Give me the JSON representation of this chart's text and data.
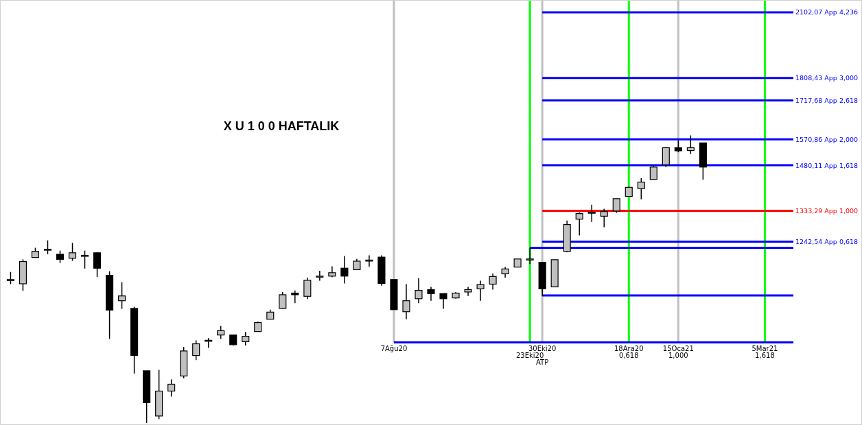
{
  "chart_data": {
    "type": "candlestick",
    "title": "X U 1 0 0 HAFTALIK",
    "log": "y",
    "tick_labels": "x",
    "xlim": [
      "2019-12-28",
      "2021-04-29"
    ],
    "ylim": [
      816,
      2162
    ],
    "xticks": [
      {
        "value": "2020-08-07",
        "label": "7Ağu20"
      },
      {
        "value": "2020-10-30",
        "label": "30Eki20"
      },
      {
        "value": "2020-12-18",
        "label": "18Ara20"
      },
      {
        "value": "2021-01-15",
        "label": "15Oca21"
      },
      {
        "value": "2021-03-05",
        "label": "5Mar21"
      }
    ],
    "x": [
      "2020-01-03",
      "2020-01-10",
      "2020-01-17",
      "2020-01-24",
      "2020-01-31",
      "2020-02-07",
      "2020-02-14",
      "2020-02-21",
      "2020-02-28",
      "2020-03-06",
      "2020-03-13",
      "2020-03-20",
      "2020-03-27",
      "2020-04-03",
      "2020-04-10",
      "2020-04-17",
      "2020-04-24",
      "2020-05-01",
      "2020-05-08",
      "2020-05-15",
      "2020-05-22",
      "2020-05-29",
      "2020-06-05",
      "2020-06-12",
      "2020-06-19",
      "2020-06-26",
      "2020-07-03",
      "2020-07-10",
      "2020-07-17",
      "2020-07-24",
      "2020-07-31",
      "2020-08-07",
      "2020-08-14",
      "2020-08-21",
      "2020-08-28",
      "2020-09-04",
      "2020-09-11",
      "2020-09-18",
      "2020-09-25",
      "2020-10-02",
      "2020-10-09",
      "2020-10-16",
      "2020-10-23",
      "2020-10-30",
      "2020-11-06",
      "2020-11-13",
      "2020-11-20",
      "2020-11-27",
      "2020-12-04",
      "2020-12-11",
      "2020-12-18",
      "2020-12-25",
      "2021-01-01",
      "2021-01-08",
      "2021-01-15",
      "2021-01-22",
      "2021-01-29"
    ],
    "ohlc": [
      [
        1139,
        1159,
        1127,
        1139
      ],
      [
        1128,
        1193,
        1110,
        1187
      ],
      [
        1198,
        1225,
        1198,
        1215
      ],
      [
        1221,
        1246,
        1207,
        1221
      ],
      [
        1207,
        1217,
        1183,
        1193
      ],
      [
        1196,
        1239,
        1189,
        1211
      ],
      [
        1204,
        1217,
        1168,
        1204
      ],
      [
        1211,
        1213,
        1146,
        1169
      ],
      [
        1150,
        1161,
        994,
        1062
      ],
      [
        1085,
        1132,
        1065,
        1097
      ],
      [
        1066,
        1070,
        918,
        957
      ],
      [
        924,
        924,
        820,
        859
      ],
      [
        833,
        926,
        827,
        882
      ],
      [
        882,
        906,
        871,
        896
      ],
      [
        913,
        976,
        908,
        967
      ],
      [
        957,
        991,
        947,
        983
      ],
      [
        991,
        996,
        974,
        991
      ],
      [
        1003,
        1024,
        994,
        1013
      ],
      [
        1003,
        1003,
        979,
        981
      ],
      [
        988,
        1010,
        979,
        1000
      ],
      [
        1011,
        1034,
        1011,
        1032
      ],
      [
        1040,
        1063,
        1040,
        1057
      ],
      [
        1066,
        1107,
        1065,
        1100
      ],
      [
        1104,
        1111,
        1079,
        1100
      ],
      [
        1096,
        1144,
        1089,
        1137
      ],
      [
        1148,
        1162,
        1136,
        1148
      ],
      [
        1148,
        1174,
        1145,
        1157
      ],
      [
        1169,
        1202,
        1129,
        1148
      ],
      [
        1165,
        1194,
        1165,
        1188
      ],
      [
        1191,
        1204,
        1173,
        1191
      ],
      [
        1199,
        1204,
        1123,
        1129
      ],
      [
        1139,
        1139,
        1063,
        1063
      ],
      [
        1058,
        1127,
        1040,
        1085
      ],
      [
        1090,
        1142,
        1079,
        1111
      ],
      [
        1113,
        1120,
        1085,
        1103
      ],
      [
        1103,
        1103,
        1065,
        1090
      ],
      [
        1092,
        1107,
        1090,
        1104
      ],
      [
        1107,
        1120,
        1097,
        1113
      ],
      [
        1115,
        1136,
        1085,
        1126
      ],
      [
        1127,
        1155,
        1113,
        1147
      ],
      [
        1154,
        1172,
        1144,
        1167
      ],
      [
        1172,
        1194,
        1172,
        1194
      ],
      [
        1194,
        1225,
        1180,
        1194
      ],
      [
        1185,
        1185,
        1097,
        1115
      ],
      [
        1120,
        1192,
        1120,
        1192
      ],
      [
        1215,
        1304,
        1213,
        1292
      ],
      [
        1308,
        1329,
        1260,
        1325
      ],
      [
        1329,
        1352,
        1300,
        1329
      ],
      [
        1317,
        1340,
        1284,
        1331
      ],
      [
        1333,
        1371,
        1327,
        1371
      ],
      [
        1378,
        1409,
        1378,
        1407
      ],
      [
        1403,
        1437,
        1369,
        1424
      ],
      [
        1433,
        1482,
        1433,
        1474
      ],
      [
        1482,
        1543,
        1474,
        1541
      ],
      [
        1541,
        1567,
        1525,
        1530
      ],
      [
        1531,
        1585,
        1519,
        1541
      ],
      [
        1558,
        1558,
        1432,
        1474
      ]
    ],
    "ref_lines": [
      {
        "axis": "x",
        "value": "2020-08-07",
        "color": "#c0c0c0"
      },
      {
        "axis": "x",
        "value": "2020-10-23",
        "label": "23Eki20",
        "color": "#00ff00"
      },
      {
        "axis": "x",
        "value": "2020-10-30",
        "label": "ATP",
        "color": "#c0c0c0"
      },
      {
        "axis": "x",
        "value": "2020-12-18",
        "label": "0,618",
        "color": "#00ff00"
      },
      {
        "axis": "x",
        "value": "2021-01-15",
        "label": "1,000",
        "color": "#c0c0c0"
      },
      {
        "axis": "x",
        "value": "2021-03-05",
        "label": "1,618",
        "color": "#00ff00"
      },
      {
        "axis": "y",
        "value": 2102.07,
        "label": "2102,07 App 4,236",
        "color": "#0000ff"
      },
      {
        "axis": "y",
        "value": 1808.43,
        "label": "1808,43 App 3,000",
        "color": "#0000ff"
      },
      {
        "axis": "y",
        "value": 1717.68,
        "label": "1717,68 App 2,618",
        "color": "#0000ff"
      },
      {
        "axis": "y",
        "value": 1570.86,
        "label": "1570,86 App 2,000",
        "color": "#0000ff"
      },
      {
        "axis": "y",
        "value": 1480.11,
        "label": "1480,11 App 1,618",
        "color": "#0000ff"
      },
      {
        "axis": "y",
        "value": 1333.29,
        "label": "1333,29 App 1,000",
        "color": "#ff0000"
      },
      {
        "axis": "y",
        "value": 1242.54,
        "label": "1242,54 App 0,618",
        "color": "#0000ff"
      },
      {
        "axis": "y",
        "value": 1225,
        "color": "#0000ff"
      },
      {
        "axis": "y",
        "value": 1098,
        "color": "#0000ff"
      },
      {
        "axis": "y",
        "value": 986,
        "color": "#0000ff"
      }
    ]
  }
}
